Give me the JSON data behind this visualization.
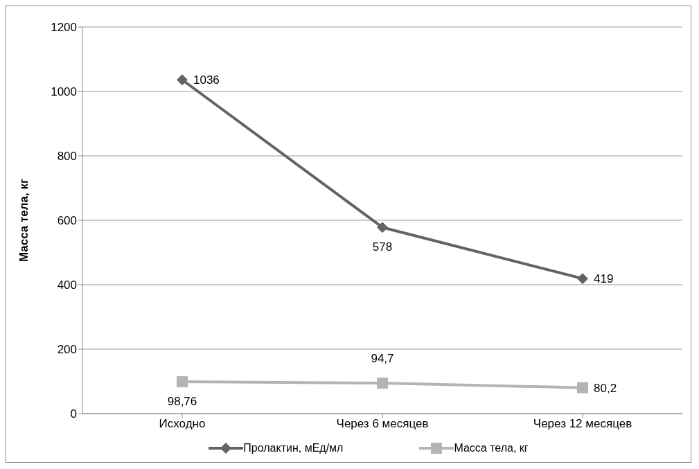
{
  "chart_data": {
    "type": "line",
    "ylabel": "Масса тела, кг",
    "categories": [
      "Исходно",
      "Через 6 месяцев",
      "Через 12 месяцев"
    ],
    "series": [
      {
        "name": "Пролактин, мЕд/мл",
        "color": "#636363",
        "values": [
          1036,
          578,
          419
        ],
        "marker": "diamond",
        "value_labels": [
          "1036",
          "578",
          "419"
        ]
      },
      {
        "name": "Масса тела, кг",
        "color": "#b4b4b4",
        "values": [
          98.76,
          94.7,
          80.2
        ],
        "marker": "square",
        "value_labels": [
          "98,76",
          "94,7",
          "80,2"
        ]
      }
    ],
    "ylim": [
      0,
      1200
    ],
    "yticks": [
      0,
      200,
      400,
      600,
      800,
      1000,
      1200
    ],
    "grid": "y",
    "legend": "bottom",
    "line_style": "solid"
  }
}
